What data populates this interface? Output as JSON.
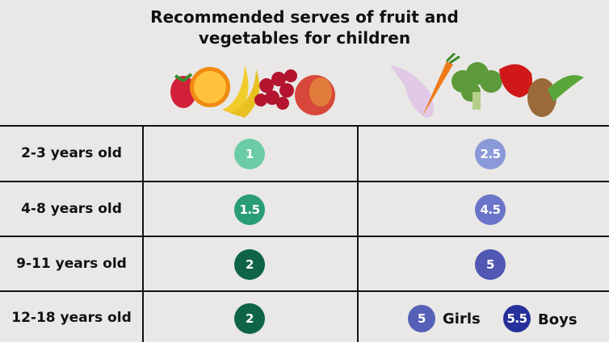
{
  "title_line1": "Recommended serves of fruit and",
  "title_line2": "vegetables for children",
  "columns": [
    "fruit-image",
    "vegetables-image"
  ],
  "rows": [
    {
      "age": "2-3 years old",
      "fruit": "1",
      "fruit_color": "#6ccca6",
      "veg": "2.5",
      "veg_color": "#8a9ad8"
    },
    {
      "age": "4-8 years old",
      "fruit": "1.5",
      "fruit_color": "#2a9d78",
      "veg": "4.5",
      "veg_color": "#6a74c8"
    },
    {
      "age": "9-11 years old",
      "fruit": "2",
      "fruit_color": "#0f6446",
      "veg": "5",
      "veg_color": "#5058b4"
    },
    {
      "age": "12-18 years old",
      "fruit": "2",
      "fruit_color": "#0f6446",
      "veg_girls": "5",
      "veg_girls_label": "Girls",
      "veg_girls_color": "#5560b8",
      "veg_boys": "5.5",
      "veg_boys_label": "Boys",
      "veg_boys_color": "#26309a"
    }
  ]
}
